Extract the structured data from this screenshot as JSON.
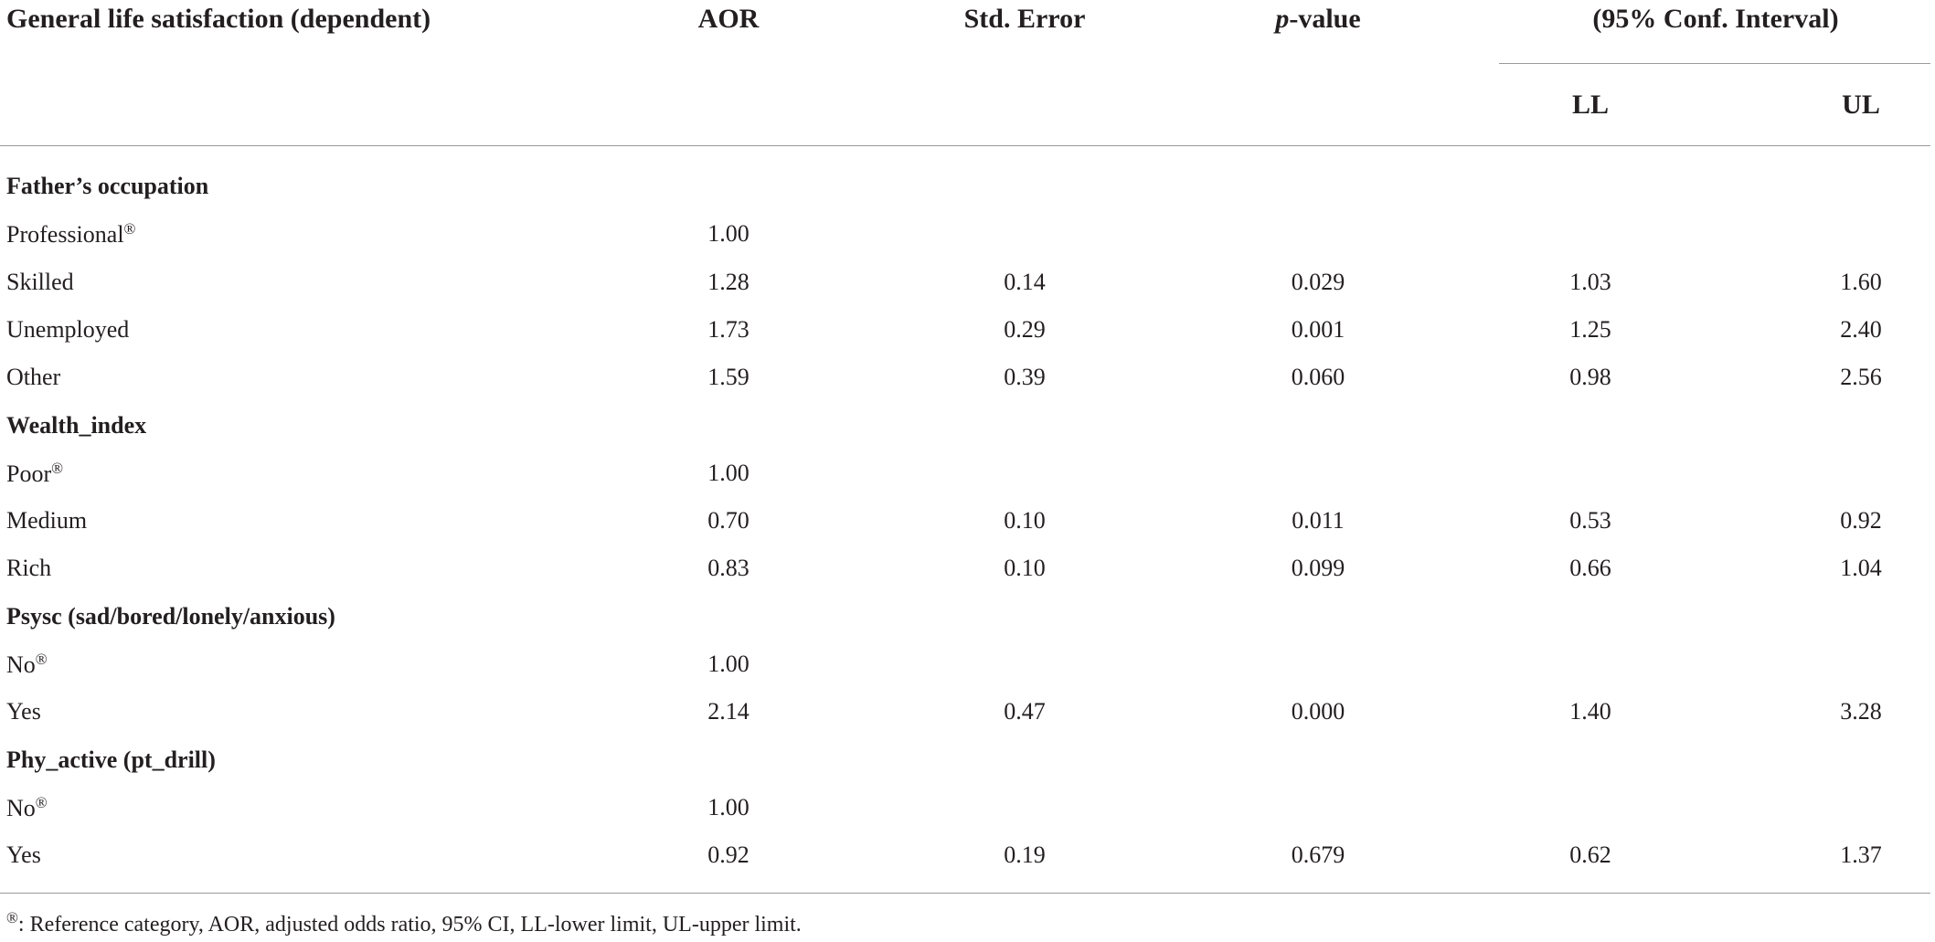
{
  "table": {
    "header": {
      "label": "General life satisfaction (dependent)",
      "aor": "AOR",
      "se": "Std. Error",
      "p": "p-value",
      "ci": "(95% Conf. Interval)",
      "ll": "LL",
      "ul": "UL"
    },
    "groups": [
      {
        "title": "Father’s occupation",
        "rows": [
          {
            "label": "Professional",
            "ref": "®",
            "cells": [
              "1.00"
            ]
          },
          {
            "label": "Skilled",
            "cells": [
              "1.28",
              "0.14",
              "0.029",
              "1.03",
              "1.60"
            ]
          },
          {
            "label": "Unemployed",
            "cells": [
              "1.73",
              "0.29",
              "0.001",
              "1.25",
              "2.40"
            ]
          },
          {
            "label": "Other",
            "cells": [
              "1.59",
              "0.39",
              "0.060",
              "0.98",
              "2.56"
            ]
          }
        ]
      },
      {
        "title": "Wealth_index",
        "rows": [
          {
            "label": "Poor",
            "ref": "®",
            "cells": [
              "1.00"
            ]
          },
          {
            "label": "Medium",
            "cells": [
              "0.70",
              "0.10",
              "0.011",
              "0.53",
              "0.92"
            ]
          },
          {
            "label": "Rich",
            "cells": [
              "0.83",
              "0.10",
              "0.099",
              "0.66",
              "1.04"
            ]
          }
        ]
      },
      {
        "title": "Psysc (sad/bored/lonely/anxious)",
        "rows": [
          {
            "label": "No",
            "ref": "®",
            "cells": [
              "1.00"
            ]
          },
          {
            "label": "Yes",
            "cells": [
              "2.14",
              "0.47",
              "0.000",
              "1.40",
              "3.28"
            ]
          }
        ]
      },
      {
        "title": "Phy_active (pt_drill)",
        "rows": [
          {
            "label": "No",
            "ref": "®",
            "cells": [
              "1.00"
            ]
          },
          {
            "label": "Yes",
            "cells": [
              "0.92",
              "0.19",
              "0.679",
              "0.62",
              "1.37"
            ]
          }
        ]
      }
    ],
    "footnote": {
      "marker": "®",
      "text": ": Reference category, AOR, adjusted odds ratio, 95% CI, LL-lower limit, UL-upper limit."
    }
  }
}
